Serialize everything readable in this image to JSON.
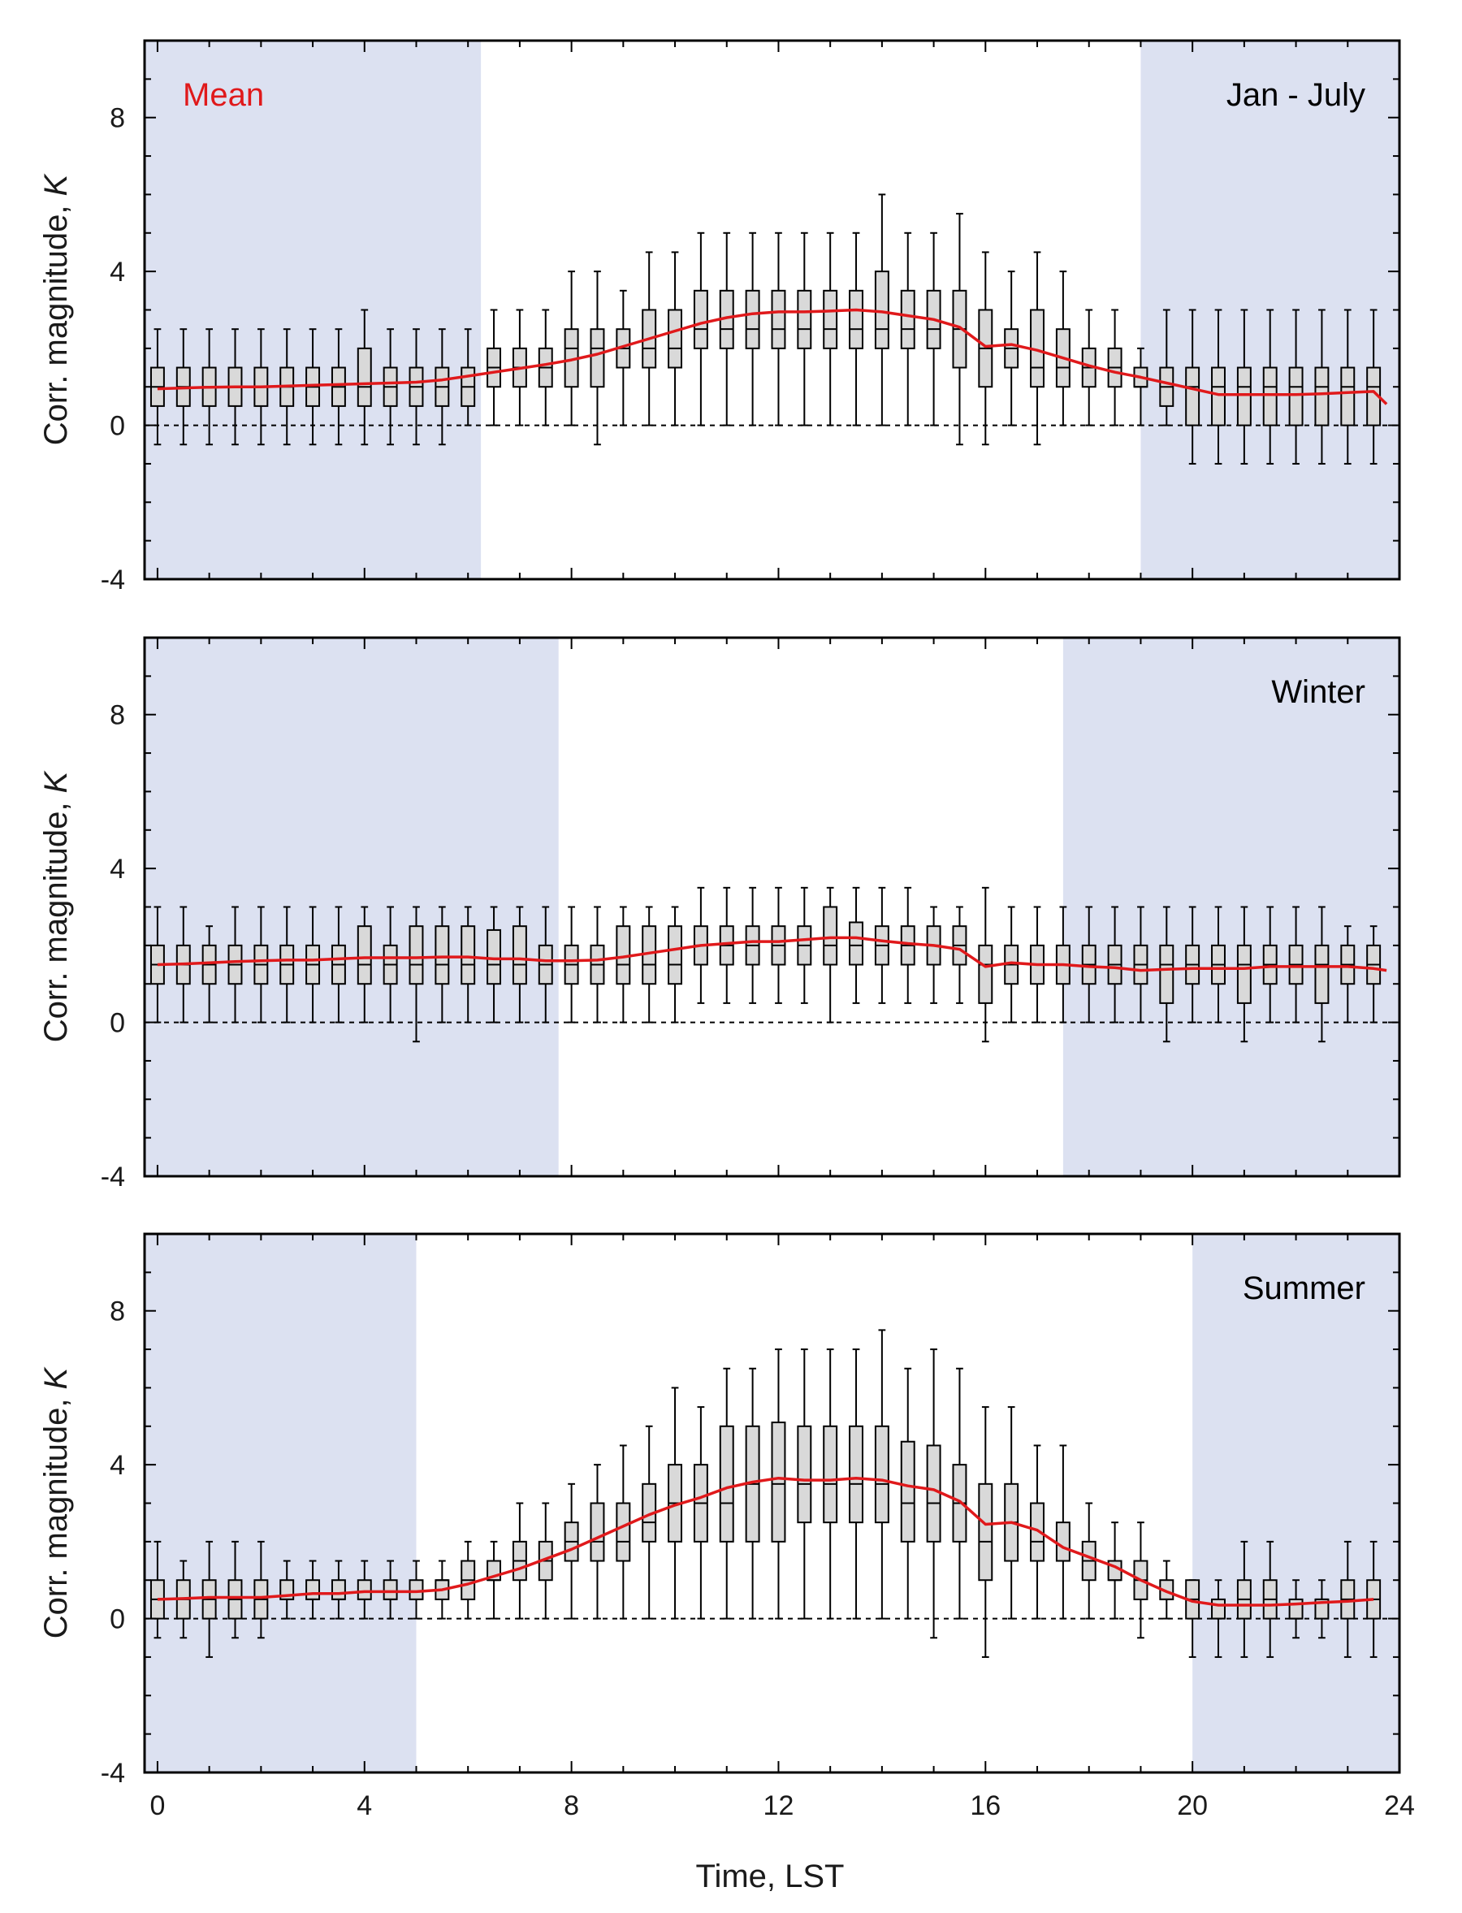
{
  "colors": {
    "night_shading": "#dce1f1",
    "box_fill": "#d9d9d9",
    "box_edge": "#000000",
    "mean_line": "#e0191b",
    "zero_line": "#000000",
    "legend_text": "#e0191b"
  },
  "legend": {
    "label": "Mean",
    "position": "top-left of first panel"
  },
  "x_axis": {
    "label": "Time, LST",
    "range": [
      -0.25,
      24
    ],
    "ticks": [
      0,
      4,
      8,
      12,
      16,
      20,
      24
    ],
    "tick_labels": [
      "0",
      "4",
      "8",
      "12",
      "16",
      "20",
      "24"
    ]
  },
  "y_axis": {
    "label": "Corr. magnitude, ",
    "label_italic": "K",
    "range": [
      -4,
      10
    ],
    "ticks": [
      -4,
      0,
      4,
      8
    ],
    "tick_labels": [
      "-4",
      "0",
      "4",
      "8"
    ]
  },
  "chart_data": [
    {
      "type": "box",
      "panel_label": "Jan - July",
      "night_shading": [
        [
          -0.25,
          6.25
        ],
        [
          19,
          24
        ]
      ],
      "zero_line": 0,
      "box_width": 0.25,
      "x": [
        0,
        0.5,
        1,
        1.5,
        2,
        2.5,
        3,
        3.5,
        4,
        4.5,
        5,
        5.5,
        6,
        6.5,
        7,
        7.5,
        8,
        8.5,
        9,
        9.5,
        10,
        10.5,
        11,
        11.5,
        12,
        12.5,
        13,
        13.5,
        14,
        14.5,
        15,
        15.5,
        16,
        16.5,
        17,
        17.5,
        18,
        18.5,
        19,
        19.5,
        20,
        20.5,
        21,
        21.5,
        22,
        22.5,
        23,
        23.5
      ],
      "whisker_low": [
        -0.5,
        -0.5,
        -0.5,
        -0.5,
        -0.5,
        -0.5,
        -0.5,
        -0.5,
        -0.5,
        -0.5,
        -0.5,
        -0.5,
        0,
        0,
        0,
        0,
        0,
        -0.5,
        0,
        0,
        0,
        0,
        0,
        0,
        0,
        0,
        0,
        0,
        0,
        0,
        0,
        -0.5,
        -0.5,
        0,
        -0.5,
        0,
        0,
        0,
        0,
        0,
        -1,
        -1,
        -1,
        -1,
        -1,
        -1,
        -1,
        -1
      ],
      "q1": [
        0.5,
        0.5,
        0.5,
        0.5,
        0.5,
        0.5,
        0.5,
        0.5,
        0.5,
        0.5,
        0.5,
        0.5,
        0.5,
        1,
        1,
        1,
        1,
        1,
        1.5,
        1.5,
        1.5,
        2,
        2,
        2,
        2,
        2,
        2,
        2,
        2,
        2,
        2,
        1.5,
        1,
        1.5,
        1,
        1,
        1,
        1,
        1,
        0.5,
        0,
        0,
        0,
        0,
        0,
        0,
        0,
        0
      ],
      "median": [
        1,
        1,
        1,
        1,
        1,
        1,
        1,
        1,
        1,
        1,
        1,
        1,
        1,
        1.5,
        1.5,
        1.5,
        2,
        2,
        2,
        2,
        2,
        2.5,
        2.5,
        2.5,
        2.5,
        2.5,
        2.5,
        2.5,
        2.5,
        2.5,
        2.5,
        2.5,
        2,
        2,
        1.5,
        1.5,
        1.5,
        1.5,
        1,
        1,
        1,
        1,
        1,
        1,
        1,
        1,
        1,
        1
      ],
      "q3": [
        1.5,
        1.5,
        1.5,
        1.5,
        1.5,
        1.5,
        1.5,
        1.5,
        2,
        1.5,
        1.5,
        1.5,
        1.5,
        2,
        2,
        2,
        2.5,
        2.5,
        2.5,
        3,
        3,
        3.5,
        3.5,
        3.5,
        3.5,
        3.5,
        3.5,
        3.5,
        4,
        3.5,
        3.5,
        3.5,
        3,
        2.5,
        3,
        2.5,
        2,
        2,
        1.5,
        1.5,
        1.5,
        1.5,
        1.5,
        1.5,
        1.5,
        1.5,
        1.5,
        1.5
      ],
      "whisker_high": [
        2.5,
        2.5,
        2.5,
        2.5,
        2.5,
        2.5,
        2.5,
        2.5,
        3,
        2.5,
        2.5,
        2.5,
        2.5,
        3,
        3,
        3,
        4,
        4,
        3.5,
        4.5,
        4.5,
        5,
        5,
        5,
        5,
        5,
        5,
        5,
        6,
        5,
        5,
        5.5,
        4.5,
        4,
        4.5,
        4,
        3,
        3,
        2,
        3,
        3,
        3,
        3,
        3,
        3,
        3,
        3,
        3
      ],
      "mean": {
        "x": [
          0,
          0.5,
          1,
          1.5,
          2,
          2.5,
          3,
          3.5,
          4,
          4.5,
          5,
          5.5,
          6,
          6.5,
          7,
          7.5,
          8,
          8.5,
          9,
          9.5,
          10,
          10.5,
          11,
          11.5,
          12,
          12.5,
          13,
          13.5,
          14,
          14.5,
          15,
          15.5,
          16,
          16.5,
          17,
          17.5,
          18,
          18.5,
          19,
          19.5,
          20,
          20.5,
          21,
          21.5,
          22,
          22.5,
          23,
          23.5,
          23.75
        ],
        "y": [
          0.95,
          0.97,
          0.99,
          1.0,
          1.0,
          1.02,
          1.04,
          1.06,
          1.08,
          1.1,
          1.12,
          1.18,
          1.28,
          1.38,
          1.48,
          1.58,
          1.7,
          1.85,
          2.05,
          2.25,
          2.45,
          2.65,
          2.8,
          2.9,
          2.95,
          2.95,
          2.97,
          3.0,
          2.95,
          2.85,
          2.75,
          2.55,
          2.05,
          2.1,
          1.95,
          1.75,
          1.55,
          1.38,
          1.25,
          1.1,
          0.95,
          0.8,
          0.8,
          0.8,
          0.8,
          0.82,
          0.85,
          0.88,
          0.55
        ]
      }
    },
    {
      "type": "box",
      "panel_label": "Winter",
      "night_shading": [
        [
          -0.25,
          7.75
        ],
        [
          17.5,
          24
        ]
      ],
      "zero_line": 0,
      "box_width": 0.25,
      "x": [
        0,
        0.5,
        1,
        1.5,
        2,
        2.5,
        3,
        3.5,
        4,
        4.5,
        5,
        5.5,
        6,
        6.5,
        7,
        7.5,
        8,
        8.5,
        9,
        9.5,
        10,
        10.5,
        11,
        11.5,
        12,
        12.5,
        13,
        13.5,
        14,
        14.5,
        15,
        15.5,
        16,
        16.5,
        17,
        17.5,
        18,
        18.5,
        19,
        19.5,
        20,
        20.5,
        21,
        21.5,
        22,
        22.5,
        23,
        23.5
      ],
      "whisker_low": [
        0,
        0,
        0,
        0,
        0,
        0,
        0,
        0,
        0,
        0,
        -0.5,
        0,
        0,
        0,
        0,
        0,
        0,
        0,
        0,
        0,
        0,
        0.5,
        0.5,
        0.5,
        0.5,
        0.5,
        0,
        0.5,
        0.5,
        0.5,
        0.5,
        0.5,
        -0.5,
        0,
        0,
        0,
        0,
        0,
        0,
        -0.5,
        0,
        0,
        -0.5,
        0,
        0,
        -0.5,
        0,
        0
      ],
      "q1": [
        1,
        1,
        1,
        1,
        1,
        1,
        1,
        1,
        1,
        1,
        1,
        1,
        1,
        1,
        1,
        1,
        1,
        1,
        1,
        1,
        1,
        1.5,
        1.5,
        1.5,
        1.5,
        1.5,
        1.5,
        1.5,
        1.5,
        1.5,
        1.5,
        1.5,
        0.5,
        1,
        1,
        1,
        1,
        1,
        1,
        0.5,
        1,
        1,
        0.5,
        1,
        1,
        0.5,
        1,
        1
      ],
      "median": [
        1.5,
        1.5,
        1.5,
        1.5,
        1.5,
        1.5,
        1.5,
        1.5,
        1.5,
        1.5,
        1.5,
        1.5,
        1.5,
        1.5,
        1.5,
        1.5,
        1.5,
        1.5,
        1.5,
        1.5,
        1.5,
        2,
        2,
        2,
        2,
        2,
        2,
        2,
        2,
        2,
        2,
        2,
        1.5,
        1.5,
        1.5,
        1.5,
        1.5,
        1.5,
        1.5,
        1.5,
        1.5,
        1.5,
        1.5,
        1.5,
        1.5,
        1.5,
        1.5,
        1.5
      ],
      "q3": [
        2,
        2,
        2,
        2,
        2,
        2,
        2,
        2,
        2.5,
        2,
        2.5,
        2.5,
        2.5,
        2.4,
        2.5,
        2,
        2,
        2,
        2.5,
        2.5,
        2.5,
        2.5,
        2.5,
        2.5,
        2.5,
        2.5,
        3,
        2.6,
        2.5,
        2.5,
        2.5,
        2.5,
        2,
        2,
        2,
        2,
        2,
        2,
        2,
        2,
        2,
        2,
        2,
        2,
        2,
        2,
        2,
        2
      ],
      "whisker_high": [
        3,
        3,
        2.5,
        3,
        3,
        3,
        3,
        3,
        3,
        3,
        3,
        3,
        3,
        3,
        3,
        3,
        3,
        3,
        3,
        3,
        3,
        3.5,
        3.5,
        3.5,
        3.5,
        3.5,
        3.5,
        3.5,
        3.5,
        3.5,
        3,
        3,
        3.5,
        3,
        3,
        3,
        3,
        3,
        3,
        3,
        3,
        3,
        3,
        3,
        3,
        3,
        2.5,
        2.5
      ],
      "mean": {
        "x": [
          0,
          0.5,
          1,
          1.5,
          2,
          2.5,
          3,
          3.5,
          4,
          4.5,
          5,
          5.5,
          6,
          6.5,
          7,
          7.5,
          8,
          8.5,
          9,
          9.5,
          10,
          10.5,
          11,
          11.5,
          12,
          12.5,
          13,
          13.5,
          14,
          14.5,
          15,
          15.5,
          16,
          16.5,
          17,
          17.5,
          18,
          18.5,
          19,
          19.5,
          20,
          20.5,
          21,
          21.5,
          22,
          22.5,
          23,
          23.5,
          23.75
        ],
        "y": [
          1.5,
          1.52,
          1.55,
          1.58,
          1.6,
          1.62,
          1.62,
          1.65,
          1.68,
          1.68,
          1.68,
          1.7,
          1.7,
          1.65,
          1.65,
          1.6,
          1.6,
          1.62,
          1.7,
          1.8,
          1.9,
          2.0,
          2.05,
          2.1,
          2.1,
          2.15,
          2.2,
          2.2,
          2.12,
          2.05,
          2.0,
          1.9,
          1.45,
          1.55,
          1.5,
          1.5,
          1.45,
          1.42,
          1.35,
          1.38,
          1.4,
          1.4,
          1.4,
          1.45,
          1.45,
          1.45,
          1.45,
          1.4,
          1.35
        ]
      }
    },
    {
      "type": "box",
      "panel_label": "Summer",
      "night_shading": [
        [
          -0.25,
          5
        ],
        [
          20,
          24
        ]
      ],
      "zero_line": 0,
      "box_width": 0.25,
      "x": [
        0,
        0.5,
        1,
        1.5,
        2,
        2.5,
        3,
        3.5,
        4,
        4.5,
        5,
        5.5,
        6,
        6.5,
        7,
        7.5,
        8,
        8.5,
        9,
        9.5,
        10,
        10.5,
        11,
        11.5,
        12,
        12.5,
        13,
        13.5,
        14,
        14.5,
        15,
        15.5,
        16,
        16.5,
        17,
        17.5,
        18,
        18.5,
        19,
        19.5,
        20,
        20.5,
        21,
        21.5,
        22,
        22.5,
        23,
        23.5
      ],
      "whisker_low": [
        -0.5,
        -0.5,
        -1,
        -0.5,
        -0.5,
        0,
        0,
        0,
        0,
        0,
        0,
        0,
        0,
        0,
        0,
        0,
        0,
        0,
        0,
        0,
        0,
        0,
        0,
        0,
        0,
        0,
        0,
        0,
        0,
        0,
        -0.5,
        0,
        -1,
        0,
        0,
        0,
        0,
        0,
        -0.5,
        0,
        -1,
        -1,
        -1,
        -1,
        -0.5,
        -0.5,
        -1,
        -1
      ],
      "q1": [
        0,
        0,
        0,
        0,
        0,
        0.5,
        0.5,
        0.5,
        0.5,
        0.5,
        0.5,
        0.5,
        0.5,
        1,
        1,
        1,
        1.5,
        1.5,
        1.5,
        2,
        2,
        2,
        2,
        2,
        2,
        2.5,
        2.5,
        2.5,
        2.5,
        2,
        2,
        2,
        1,
        1.5,
        1.5,
        1.5,
        1,
        1,
        0.5,
        0.5,
        0,
        0,
        0,
        0,
        0,
        0,
        0,
        0
      ],
      "median": [
        0.5,
        0.5,
        0.5,
        0.5,
        0.5,
        0.5,
        0.5,
        0.5,
        0.5,
        0.5,
        0.5,
        1,
        1,
        1,
        1.5,
        1.5,
        2,
        2,
        2,
        2.5,
        3,
        3,
        3,
        3.5,
        3.5,
        3.5,
        3.5,
        3.5,
        3.5,
        3,
        3,
        3,
        2,
        2.5,
        2,
        1.5,
        1.5,
        1,
        1,
        0.5,
        0.5,
        0,
        0.5,
        0.5,
        0,
        0.5,
        0.5,
        0.5
      ],
      "q3": [
        1,
        1,
        1,
        1,
        1,
        1,
        1,
        1,
        1,
        1,
        1,
        1,
        1.5,
        1.5,
        2,
        2,
        2.5,
        3,
        3,
        3.5,
        4,
        4,
        5,
        5,
        5.1,
        5,
        5,
        5,
        5,
        4.6,
        4.5,
        4,
        3.5,
        3.5,
        3,
        2.5,
        2,
        1.5,
        1.5,
        1,
        1,
        0.5,
        1,
        1,
        0.5,
        0.5,
        1,
        1
      ],
      "whisker_high": [
        2,
        1.5,
        2,
        2,
        2,
        1.5,
        1.5,
        1.5,
        1.5,
        1.5,
        1.5,
        1.5,
        2,
        2,
        3,
        3,
        3.5,
        4,
        4.5,
        5,
        6,
        5.5,
        6.5,
        6.5,
        7,
        7,
        7,
        7,
        7.5,
        6.5,
        7,
        6.5,
        5.5,
        5.5,
        4.5,
        4.5,
        3,
        2.5,
        2.5,
        1.5,
        1,
        1,
        2,
        2,
        1,
        1,
        2,
        2
      ],
      "mean": {
        "x": [
          0,
          0.5,
          1,
          1.5,
          2,
          2.5,
          3,
          3.5,
          4,
          4.5,
          5,
          5.5,
          6,
          6.5,
          7,
          7.5,
          8,
          8.5,
          9,
          9.5,
          10,
          10.5,
          11,
          11.5,
          12,
          12.5,
          13,
          13.5,
          14,
          14.5,
          15,
          15.5,
          16,
          16.5,
          17,
          17.5,
          18,
          18.5,
          19,
          19.5,
          20,
          20.5,
          21,
          21.5,
          22,
          22.5,
          23,
          23.5
        ],
        "y": [
          0.5,
          0.52,
          0.55,
          0.55,
          0.55,
          0.6,
          0.65,
          0.65,
          0.7,
          0.7,
          0.7,
          0.75,
          0.9,
          1.1,
          1.3,
          1.55,
          1.8,
          2.1,
          2.4,
          2.7,
          2.95,
          3.15,
          3.4,
          3.55,
          3.65,
          3.6,
          3.6,
          3.65,
          3.6,
          3.45,
          3.35,
          3.05,
          2.45,
          2.5,
          2.3,
          1.85,
          1.6,
          1.35,
          1.0,
          0.7,
          0.45,
          0.35,
          0.35,
          0.35,
          0.38,
          0.42,
          0.45,
          0.5
        ]
      }
    }
  ]
}
